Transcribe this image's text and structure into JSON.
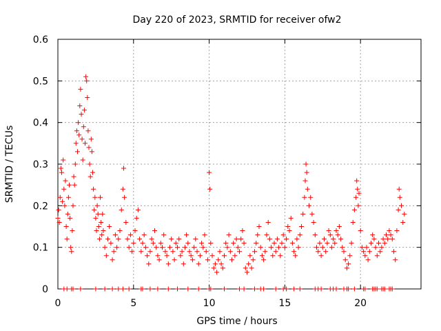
{
  "chart_data": {
    "type": "scatter",
    "title": "Day 220 of 2023, SRMTID for receiver ofw2",
    "xlabel": "GPS time / hours",
    "ylabel": "SRMTID / TECUs",
    "xlim": [
      0,
      24
    ],
    "ylim": [
      0,
      0.6
    ],
    "xticks": [
      0,
      5,
      10,
      15,
      20
    ],
    "yticks": [
      0,
      0.1,
      0.2,
      0.3,
      0.4,
      0.5,
      0.6
    ],
    "xtick_labels": [
      "0",
      "5",
      "10",
      "15",
      "20"
    ],
    "ytick_labels": [
      "0",
      "0.1",
      "0.2",
      "0.3",
      "0.4",
      "0.5",
      "0.6"
    ],
    "grid": true,
    "marker": "+",
    "color": "#ff0000",
    "series": [
      {
        "name": "SRMTID",
        "points": [
          [
            0.0,
            0.17
          ],
          [
            0.05,
            0.19
          ],
          [
            0.1,
            0.16
          ],
          [
            0.15,
            0.22
          ],
          [
            0.2,
            0.29
          ],
          [
            0.25,
            0.28
          ],
          [
            0.3,
            0.21
          ],
          [
            0.35,
            0.31
          ],
          [
            0.4,
            0.24
          ],
          [
            0.45,
            0.2
          ],
          [
            0.5,
            0.26
          ],
          [
            0.55,
            0.15
          ],
          [
            0.6,
            0.12
          ],
          [
            0.65,
            0.18
          ],
          [
            0.7,
            0.22
          ],
          [
            0.75,
            0.25
          ],
          [
            0.8,
            0.17
          ],
          [
            0.85,
            0.1
          ],
          [
            0.9,
            0.09
          ],
          [
            0.95,
            0.14
          ],
          [
            1.0,
            0.2
          ],
          [
            1.05,
            0.27
          ],
          [
            1.1,
            0.25
          ],
          [
            1.15,
            0.3
          ],
          [
            1.2,
            0.35
          ],
          [
            1.25,
            0.38
          ],
          [
            1.3,
            0.33
          ],
          [
            1.35,
            0.4
          ],
          [
            1.4,
            0.37
          ],
          [
            1.45,
            0.44
          ],
          [
            1.5,
            0.48
          ],
          [
            1.55,
            0.42
          ],
          [
            1.6,
            0.36
          ],
          [
            1.65,
            0.31
          ],
          [
            1.7,
            0.39
          ],
          [
            1.75,
            0.43
          ],
          [
            1.8,
            0.35
          ],
          [
            1.85,
            0.51
          ],
          [
            1.9,
            0.5
          ],
          [
            1.95,
            0.46
          ],
          [
            2.0,
            0.38
          ],
          [
            2.05,
            0.34
          ],
          [
            2.1,
            0.3
          ],
          [
            2.15,
            0.27
          ],
          [
            2.2,
            0.36
          ],
          [
            2.25,
            0.33
          ],
          [
            2.3,
            0.28
          ],
          [
            2.35,
            0.24
          ],
          [
            2.4,
            0.19
          ],
          [
            2.45,
            0.22
          ],
          [
            2.5,
            0.17
          ],
          [
            2.55,
            0.14
          ],
          [
            2.6,
            0.2
          ],
          [
            2.65,
            0.18
          ],
          [
            2.7,
            0.15
          ],
          [
            2.75,
            0.12
          ],
          [
            2.8,
            0.22
          ],
          [
            2.85,
            0.16
          ],
          [
            2.9,
            0.13
          ],
          [
            2.95,
            0.18
          ],
          [
            3.0,
            0.14
          ],
          [
            3.1,
            0.1
          ],
          [
            3.2,
            0.08
          ],
          [
            3.3,
            0.12
          ],
          [
            3.4,
            0.15
          ],
          [
            3.5,
            0.11
          ],
          [
            3.6,
            0.07
          ],
          [
            3.7,
            0.09
          ],
          [
            3.8,
            0.13
          ],
          [
            3.9,
            0.1
          ],
          [
            4.0,
            0.12
          ],
          [
            4.1,
            0.14
          ],
          [
            4.2,
            0.19
          ],
          [
            4.3,
            0.24
          ],
          [
            4.35,
            0.29
          ],
          [
            4.4,
            0.22
          ],
          [
            4.5,
            0.16
          ],
          [
            4.6,
            0.12
          ],
          [
            4.7,
            0.1
          ],
          [
            4.8,
            0.13
          ],
          [
            4.9,
            0.09
          ],
          [
            5.0,
            0.11
          ],
          [
            5.1,
            0.14
          ],
          [
            5.2,
            0.17
          ],
          [
            5.3,
            0.19
          ],
          [
            5.4,
            0.12
          ],
          [
            5.5,
            0.09
          ],
          [
            5.6,
            0.11
          ],
          [
            5.7,
            0.13
          ],
          [
            5.8,
            0.1
          ],
          [
            5.9,
            0.08
          ],
          [
            6.0,
            0.06
          ],
          [
            6.1,
            0.09
          ],
          [
            6.2,
            0.12
          ],
          [
            6.3,
            0.11
          ],
          [
            6.4,
            0.14
          ],
          [
            6.5,
            0.1
          ],
          [
            6.6,
            0.08
          ],
          [
            6.7,
            0.07
          ],
          [
            6.8,
            0.11
          ],
          [
            6.9,
            0.1
          ],
          [
            7.0,
            0.13
          ],
          [
            7.1,
            0.09
          ],
          [
            7.2,
            0.08
          ],
          [
            7.3,
            0.06
          ],
          [
            7.4,
            0.1
          ],
          [
            7.5,
            0.12
          ],
          [
            7.6,
            0.09
          ],
          [
            7.7,
            0.07
          ],
          [
            7.8,
            0.11
          ],
          [
            7.9,
            0.1
          ],
          [
            8.0,
            0.12
          ],
          [
            8.1,
            0.08
          ],
          [
            8.2,
            0.09
          ],
          [
            8.3,
            0.06
          ],
          [
            8.4,
            0.1
          ],
          [
            8.5,
            0.13
          ],
          [
            8.6,
            0.11
          ],
          [
            8.7,
            0.09
          ],
          [
            8.8,
            0.08
          ],
          [
            8.9,
            0.07
          ],
          [
            9.0,
            0.1
          ],
          [
            9.1,
            0.12
          ],
          [
            9.2,
            0.09
          ],
          [
            9.3,
            0.06
          ],
          [
            9.4,
            0.08
          ],
          [
            9.5,
            0.11
          ],
          [
            9.6,
            0.1
          ],
          [
            9.7,
            0.13
          ],
          [
            9.8,
            0.09
          ],
          [
            9.9,
            0.07
          ],
          [
            10.0,
            0.28
          ],
          [
            10.05,
            0.24
          ],
          [
            10.1,
            0.11
          ],
          [
            10.2,
            0.08
          ],
          [
            10.3,
            0.05
          ],
          [
            10.4,
            0.06
          ],
          [
            10.5,
            0.04
          ],
          [
            10.6,
            0.07
          ],
          [
            10.7,
            0.09
          ],
          [
            10.8,
            0.06
          ],
          [
            10.9,
            0.05
          ],
          [
            11.0,
            0.08
          ],
          [
            11.1,
            0.11
          ],
          [
            11.2,
            0.1
          ],
          [
            11.3,
            0.13
          ],
          [
            11.4,
            0.09
          ],
          [
            11.5,
            0.07
          ],
          [
            11.6,
            0.11
          ],
          [
            11.7,
            0.08
          ],
          [
            11.8,
            0.12
          ],
          [
            11.9,
            0.1
          ],
          [
            12.0,
            0.09
          ],
          [
            12.1,
            0.12
          ],
          [
            12.2,
            0.14
          ],
          [
            12.3,
            0.11
          ],
          [
            12.4,
            0.05
          ],
          [
            12.5,
            0.04
          ],
          [
            12.6,
            0.06
          ],
          [
            12.7,
            0.08
          ],
          [
            12.8,
            0.05
          ],
          [
            12.9,
            0.07
          ],
          [
            13.0,
            0.09
          ],
          [
            13.1,
            0.11
          ],
          [
            13.2,
            0.13
          ],
          [
            13.3,
            0.15
          ],
          [
            13.4,
            0.1
          ],
          [
            13.5,
            0.08
          ],
          [
            13.6,
            0.07
          ],
          [
            13.7,
            0.09
          ],
          [
            13.8,
            0.13
          ],
          [
            13.9,
            0.16
          ],
          [
            14.0,
            0.12
          ],
          [
            14.1,
            0.1
          ],
          [
            14.2,
            0.08
          ],
          [
            14.3,
            0.11
          ],
          [
            14.4,
            0.09
          ],
          [
            14.5,
            0.12
          ],
          [
            14.6,
            0.1
          ],
          [
            14.7,
            0.08
          ],
          [
            14.8,
            0.11
          ],
          [
            14.9,
            0.13
          ],
          [
            15.0,
            0.1
          ],
          [
            15.1,
            0.12
          ],
          [
            15.2,
            0.15
          ],
          [
            15.3,
            0.14
          ],
          [
            15.4,
            0.17
          ],
          [
            15.5,
            0.11
          ],
          [
            15.6,
            0.09
          ],
          [
            15.7,
            0.08
          ],
          [
            15.8,
            0.12
          ],
          [
            15.9,
            0.1
          ],
          [
            16.0,
            0.13
          ],
          [
            16.1,
            0.15
          ],
          [
            16.2,
            0.18
          ],
          [
            16.3,
            0.22
          ],
          [
            16.35,
            0.26
          ],
          [
            16.4,
            0.3
          ],
          [
            16.45,
            0.28
          ],
          [
            16.5,
            0.24
          ],
          [
            16.6,
            0.2
          ],
          [
            16.7,
            0.22
          ],
          [
            16.8,
            0.18
          ],
          [
            16.9,
            0.16
          ],
          [
            17.0,
            0.13
          ],
          [
            17.1,
            0.1
          ],
          [
            17.2,
            0.09
          ],
          [
            17.3,
            0.11
          ],
          [
            17.4,
            0.08
          ],
          [
            17.5,
            0.1
          ],
          [
            17.6,
            0.12
          ],
          [
            17.7,
            0.09
          ],
          [
            17.8,
            0.11
          ],
          [
            17.9,
            0.14
          ],
          [
            18.0,
            0.13
          ],
          [
            18.1,
            0.1
          ],
          [
            18.2,
            0.12
          ],
          [
            18.3,
            0.11
          ],
          [
            18.4,
            0.14
          ],
          [
            18.5,
            0.13
          ],
          [
            18.6,
            0.15
          ],
          [
            18.7,
            0.12
          ],
          [
            18.8,
            0.1
          ],
          [
            18.9,
            0.09
          ],
          [
            19.0,
            0.07
          ],
          [
            19.1,
            0.05
          ],
          [
            19.2,
            0.06
          ],
          [
            19.3,
            0.08
          ],
          [
            19.4,
            0.11
          ],
          [
            19.5,
            0.16
          ],
          [
            19.6,
            0.19
          ],
          [
            19.7,
            0.22
          ],
          [
            19.75,
            0.26
          ],
          [
            19.8,
            0.24
          ],
          [
            19.85,
            0.2
          ],
          [
            19.9,
            0.23
          ],
          [
            20.0,
            0.14
          ],
          [
            20.1,
            0.1
          ],
          [
            20.2,
            0.09
          ],
          [
            20.3,
            0.08
          ],
          [
            20.4,
            0.1
          ],
          [
            20.5,
            0.07
          ],
          [
            20.6,
            0.09
          ],
          [
            20.7,
            0.11
          ],
          [
            20.8,
            0.13
          ],
          [
            20.9,
            0.12
          ],
          [
            21.0,
            0.1
          ],
          [
            21.1,
            0.08
          ],
          [
            21.2,
            0.11
          ],
          [
            21.3,
            0.09
          ],
          [
            21.4,
            0.1
          ],
          [
            21.5,
            0.12
          ],
          [
            21.6,
            0.11
          ],
          [
            21.7,
            0.13
          ],
          [
            21.8,
            0.12
          ],
          [
            21.9,
            0.14
          ],
          [
            22.0,
            0.13
          ],
          [
            22.1,
            0.12
          ],
          [
            22.2,
            0.09
          ],
          [
            22.3,
            0.07
          ],
          [
            22.4,
            0.14
          ],
          [
            22.5,
            0.19
          ],
          [
            22.55,
            0.24
          ],
          [
            22.6,
            0.22
          ],
          [
            22.7,
            0.2
          ],
          [
            22.8,
            0.16
          ],
          [
            22.9,
            0.18
          ]
        ]
      },
      {
        "name": "zero baseline",
        "points": [
          [
            0.4,
            0
          ],
          [
            0.6,
            0
          ],
          [
            0.9,
            0
          ],
          [
            1.0,
            0
          ],
          [
            1.5,
            0
          ],
          [
            2.5,
            0
          ],
          [
            3.1,
            0
          ],
          [
            3.6,
            0
          ],
          [
            4.0,
            0
          ],
          [
            4.3,
            0
          ],
          [
            4.7,
            0
          ],
          [
            5.5,
            0
          ],
          [
            5.6,
            0
          ],
          [
            6.1,
            0
          ],
          [
            6.6,
            0
          ],
          [
            7.3,
            0
          ],
          [
            7.9,
            0
          ],
          [
            8.6,
            0
          ],
          [
            9.3,
            0
          ],
          [
            10.0,
            0
          ],
          [
            10.1,
            0
          ],
          [
            11.0,
            0
          ],
          [
            12.0,
            0
          ],
          [
            12.3,
            0
          ],
          [
            13.0,
            0
          ],
          [
            13.4,
            0
          ],
          [
            13.6,
            0
          ],
          [
            14.4,
            0
          ],
          [
            14.9,
            0
          ],
          [
            15.1,
            0
          ],
          [
            15.6,
            0
          ],
          [
            16.0,
            0
          ],
          [
            17.0,
            0
          ],
          [
            17.2,
            0
          ],
          [
            17.4,
            0
          ],
          [
            18.0,
            0
          ],
          [
            18.2,
            0
          ],
          [
            18.4,
            0
          ],
          [
            18.9,
            0
          ],
          [
            19.1,
            0
          ],
          [
            19.2,
            0
          ],
          [
            19.6,
            0
          ],
          [
            20.2,
            0
          ],
          [
            20.3,
            0
          ],
          [
            20.8,
            0
          ],
          [
            20.9,
            0
          ],
          [
            21.0,
            0
          ],
          [
            21.1,
            0
          ],
          [
            21.4,
            0
          ],
          [
            21.5,
            0
          ],
          [
            21.6,
            0
          ],
          [
            21.9,
            0
          ],
          [
            22.0,
            0
          ],
          [
            22.1,
            0
          ]
        ]
      }
    ]
  }
}
